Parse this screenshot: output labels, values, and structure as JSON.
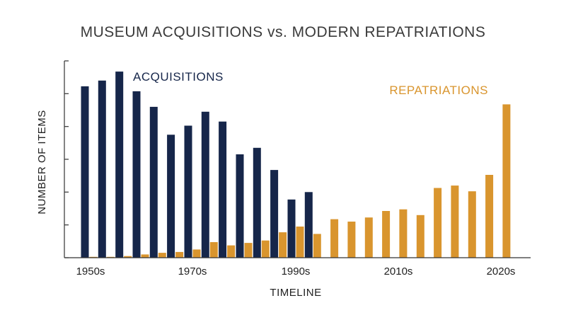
{
  "chart_data": {
    "type": "bar",
    "title": "MUSEUM ACQUISITIONS vs. MODERN REPATRIATIONS",
    "xlabel": "TIMELINE",
    "ylabel": "NUMBER OF ITEMS",
    "x_tick_labels": [
      "1950s",
      "1970s",
      "1990s",
      "2010s",
      "2020s"
    ],
    "y_ticks": [
      0,
      20,
      40,
      60,
      80,
      100,
      120
    ],
    "ylim": [
      0,
      120
    ],
    "grid": false,
    "colors": {
      "acquisitions": "#16264a",
      "repatriations": "#d9952e",
      "axis": "#333333"
    },
    "series": [
      {
        "name": "ACQUISITIONS",
        "label_position": "top-left",
        "values": [
          104.5,
          108,
          113.5,
          101.5,
          92,
          75,
          80.5,
          89,
          83,
          63,
          67,
          53.5,
          35.5,
          40,
          0,
          0,
          0,
          0,
          0,
          0,
          0,
          0,
          0,
          0,
          0
        ]
      },
      {
        "name": "REPATRIATIONS",
        "label_position": "top-right",
        "values": [
          0.5,
          0.5,
          1,
          2,
          3,
          3.5,
          5,
          9.5,
          7.5,
          9,
          10.5,
          15.5,
          19,
          14.5,
          23.5,
          22,
          24.5,
          28.5,
          29.5,
          26,
          42.5,
          44,
          40.5,
          50.5,
          93.5
        ]
      }
    ]
  }
}
